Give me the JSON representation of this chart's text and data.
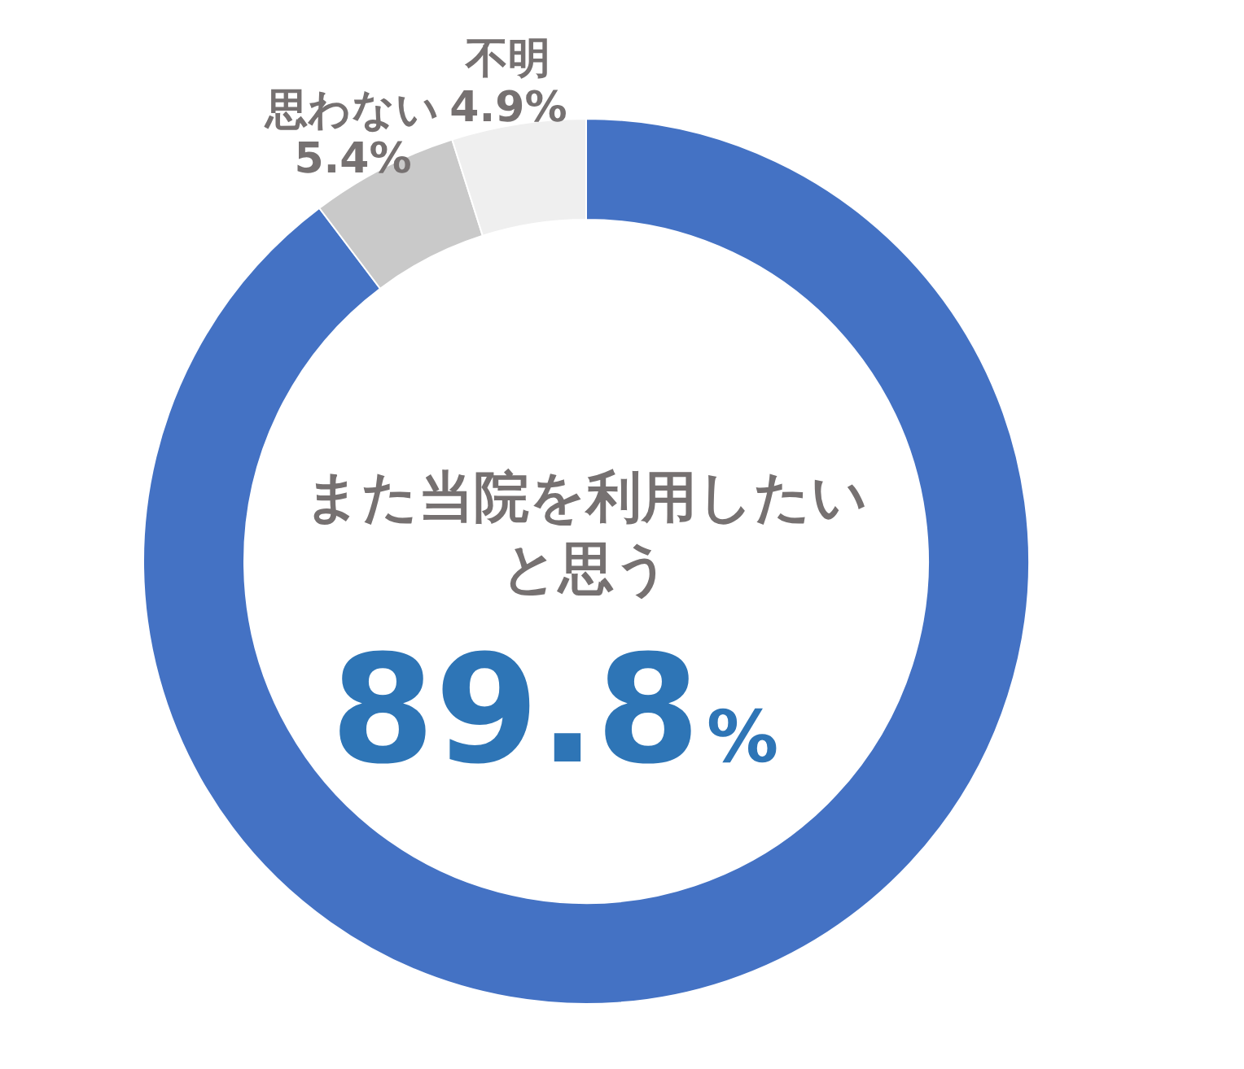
{
  "chart_data": {
    "type": "donut",
    "categories": [
      "また当院を利用したいと思う",
      "思わない",
      "不明"
    ],
    "values": [
      89.8,
      5.4,
      4.9
    ],
    "colors": [
      "#4472c4",
      "#c9c9c9",
      "#efefef"
    ],
    "value_labels": [
      "89.8%",
      "5.4%",
      "4.9%"
    ]
  }
}
